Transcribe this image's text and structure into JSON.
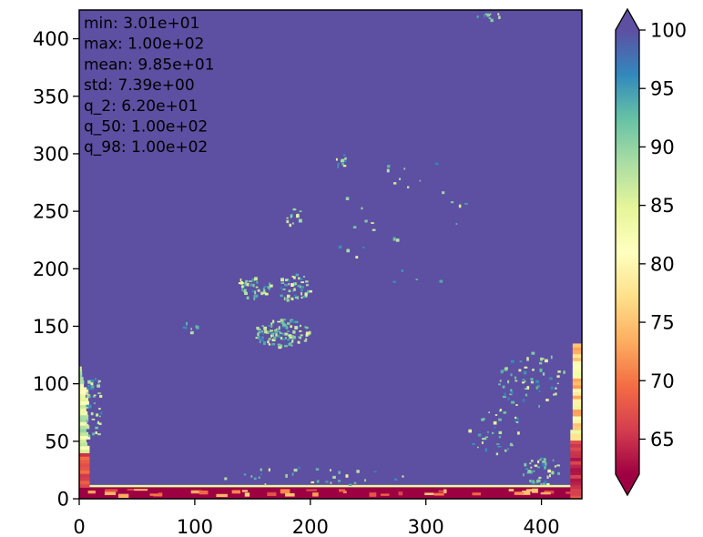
{
  "chart_data": {
    "type": "heatmap",
    "colormap": "Spectral",
    "stats": [
      "min: 3.01e+01",
      "max: 1.00e+02",
      "mean: 9.85e+01",
      "std: 7.39e+00",
      "q_2: 6.20e+01",
      "q_50: 1.00e+02",
      "q_98: 1.00e+02"
    ],
    "xlim": [
      0,
      435
    ],
    "ylim": [
      0,
      425
    ],
    "x_ticks": [
      "0",
      "100",
      "200",
      "300",
      "400"
    ],
    "y_ticks": [
      "0",
      "50",
      "100",
      "150",
      "200",
      "250",
      "300",
      "350",
      "400"
    ],
    "colorbar": {
      "vmin": 62,
      "vmax": 100,
      "extend": "both",
      "ticks": [
        "65",
        "70",
        "75",
        "80",
        "85",
        "90",
        "95",
        "100"
      ]
    },
    "background_value": 100,
    "regions": [
      {
        "name": "bottom-strip",
        "value": 62
      },
      {
        "name": "left-edge",
        "value": 80
      },
      {
        "name": "right-edge",
        "value": 72
      },
      {
        "name": "center-speckle",
        "value": 90
      }
    ]
  }
}
